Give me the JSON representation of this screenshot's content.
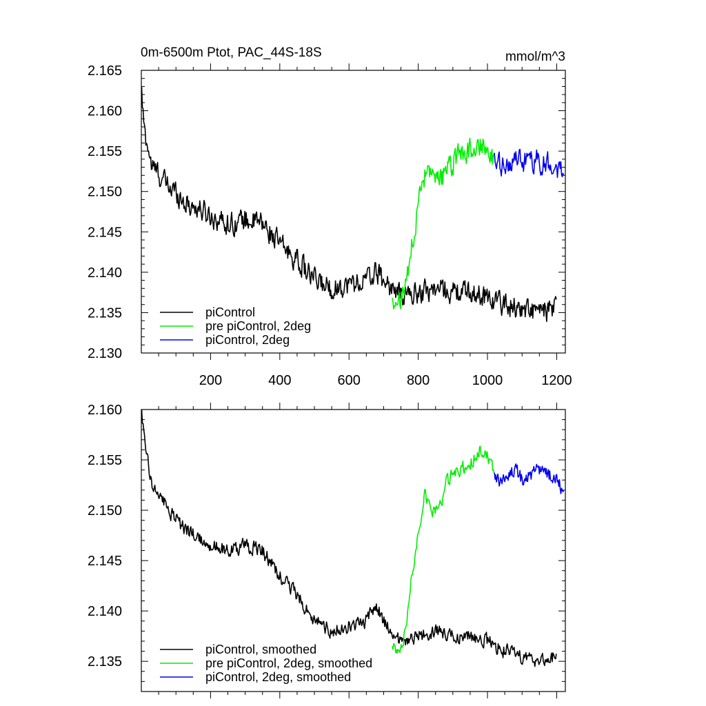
{
  "chart_data": [
    {
      "type": "line",
      "title": "0m-6500m Ptot, PAC_44S-18S",
      "units": "mmol/m^3",
      "xlim": [
        0,
        1225
      ],
      "ylim": [
        2.13,
        2.165
      ],
      "yticks": [
        "2.130",
        "2.135",
        "2.140",
        "2.145",
        "2.150",
        "2.155",
        "2.160",
        "2.165"
      ],
      "yticks_values": [
        2.13,
        2.135,
        2.14,
        2.145,
        2.15,
        2.155,
        2.16,
        2.165
      ],
      "xticks": [
        "200",
        "400",
        "600",
        "800",
        "1000",
        "1200"
      ],
      "xticks_values": [
        200,
        400,
        600,
        800,
        1000,
        1200
      ],
      "show_x_labels": true,
      "noise": 0.0016,
      "legend": [
        "piControl",
        "pre piControl, 2deg",
        "piControl, 2deg"
      ],
      "legend_position": "bottom-left",
      "series": [
        {
          "name": "piControl",
          "color": "#000000",
          "x": [
            1,
            5,
            10,
            20,
            30,
            45,
            60,
            80,
            100,
            130,
            160,
            200,
            250,
            300,
            350,
            400,
            450,
            500,
            550,
            600,
            650,
            680,
            700,
            750,
            800,
            850,
            900,
            950,
            1000,
            1050,
            1100,
            1150,
            1200
          ],
          "y": [
            2.162,
            2.1595,
            2.157,
            2.1555,
            2.153,
            2.1525,
            2.1515,
            2.1505,
            2.15,
            2.1485,
            2.148,
            2.147,
            2.146,
            2.1465,
            2.146,
            2.1435,
            2.1415,
            2.139,
            2.138,
            2.1385,
            2.139,
            2.14,
            2.139,
            2.137,
            2.1375,
            2.138,
            2.1375,
            2.1375,
            2.137,
            2.136,
            2.1355,
            2.135,
            2.1355
          ]
        },
        {
          "name": "pre piControl, 2deg",
          "color": "#00ee00",
          "x": [
            725,
            740,
            760,
            780,
            800,
            820,
            840,
            860,
            880,
            900,
            920,
            940,
            960,
            980,
            1000,
            1020
          ],
          "y": [
            2.137,
            2.1355,
            2.1375,
            2.143,
            2.1485,
            2.152,
            2.1515,
            2.151,
            2.1525,
            2.1535,
            2.1545,
            2.155,
            2.1555,
            2.156,
            2.1555,
            2.154
          ]
        },
        {
          "name": "piControl, 2deg",
          "color": "#0000ee",
          "x": [
            1020,
            1040,
            1060,
            1080,
            1100,
            1120,
            1140,
            1160,
            1180,
            1200,
            1220
          ],
          "y": [
            2.1535,
            2.153,
            2.1535,
            2.154,
            2.1535,
            2.1535,
            2.154,
            2.1535,
            2.1535,
            2.153,
            2.152
          ]
        }
      ]
    },
    {
      "type": "line",
      "title": "",
      "xlim": [
        0,
        1225
      ],
      "ylim": [
        2.132,
        2.16
      ],
      "yticks": [
        "2.135",
        "2.140",
        "2.145",
        "2.150",
        "2.155",
        "2.160"
      ],
      "yticks_values": [
        2.135,
        2.14,
        2.145,
        2.15,
        2.155,
        2.16
      ],
      "xticks": [],
      "xticks_values": [
        200,
        400,
        600,
        800,
        1000,
        1200
      ],
      "show_x_labels": false,
      "noise": 0.0008,
      "legend": [
        "piControl, smoothed",
        "pre piControl, 2deg, smoothed",
        "piControl, 2deg, smoothed"
      ],
      "legend_position": "bottom-left",
      "series": [
        {
          "name": "piControl, smoothed",
          "color": "#000000",
          "x": [
            1,
            5,
            10,
            20,
            30,
            45,
            60,
            80,
            100,
            130,
            160,
            200,
            250,
            300,
            350,
            400,
            450,
            500,
            550,
            600,
            650,
            680,
            700,
            750,
            800,
            850,
            900,
            950,
            1000,
            1050,
            1100,
            1150,
            1200
          ],
          "y": [
            2.16,
            2.1585,
            2.157,
            2.155,
            2.1525,
            2.152,
            2.151,
            2.15,
            2.149,
            2.148,
            2.1475,
            2.1465,
            2.146,
            2.1465,
            2.146,
            2.1435,
            2.1415,
            2.139,
            2.138,
            2.1385,
            2.139,
            2.1405,
            2.139,
            2.137,
            2.1375,
            2.138,
            2.1375,
            2.1375,
            2.137,
            2.136,
            2.1355,
            2.135,
            2.1355
          ]
        },
        {
          "name": "pre piControl, 2deg, smoothed",
          "color": "#00ee00",
          "x": [
            725,
            740,
            760,
            780,
            800,
            820,
            840,
            860,
            880,
            900,
            920,
            940,
            960,
            980,
            1000,
            1020
          ],
          "y": [
            2.137,
            2.136,
            2.1375,
            2.143,
            2.148,
            2.152,
            2.15,
            2.15,
            2.1525,
            2.1535,
            2.154,
            2.1545,
            2.155,
            2.156,
            2.1555,
            2.1535
          ]
        },
        {
          "name": "piControl, 2deg, smoothed",
          "color": "#0000ee",
          "x": [
            1020,
            1040,
            1060,
            1080,
            1100,
            1120,
            1140,
            1160,
            1180,
            1200,
            1220
          ],
          "y": [
            2.1535,
            2.1525,
            2.1535,
            2.154,
            2.153,
            2.1535,
            2.154,
            2.154,
            2.1535,
            2.153,
            2.152
          ]
        }
      ]
    }
  ]
}
